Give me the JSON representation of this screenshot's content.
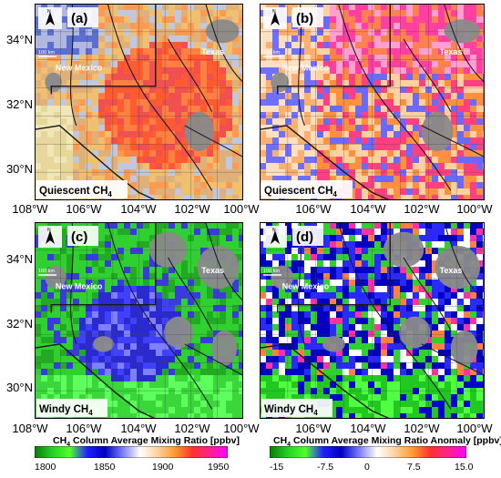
{
  "lat_labels_top": [
    "34°N",
    "32°N",
    "30°N"
  ],
  "lat_labels_bottom": [
    "34°N",
    "32°N",
    "30°N"
  ],
  "lon_labels_mid": [
    "108°W",
    "106°W",
    "104°W",
    "102°W",
    "100°W",
    "106°W",
    "104°W",
    "102°W",
    "100°W"
  ],
  "lon_labels_bottom": [
    "108°W",
    "106°W",
    "104°W",
    "102°W",
    "100°W",
    "106°W",
    "104°W",
    "102°W",
    "100°W"
  ],
  "panels": [
    {
      "letter": "(a)",
      "caption": "Quiescent CH",
      "sub": "4",
      "state_nm": "New Mexico",
      "state_tx": "Texas",
      "scale": "100 km",
      "north": "N",
      "palette": "mixing",
      "profile": "quiescent"
    },
    {
      "letter": "(b)",
      "caption": "Quiescent CH",
      "sub": "4",
      "state_nm": "New Mexico",
      "state_tx": "Texas",
      "scale": "100 km",
      "north": "N",
      "palette": "anomaly",
      "profile": "quiescent"
    },
    {
      "letter": "(c)",
      "caption": "Windy CH",
      "sub": "4",
      "state_nm": "New Mexico",
      "state_tx": "Texas",
      "scale": "100 km",
      "north": "N",
      "palette": "mixing",
      "profile": "windy"
    },
    {
      "letter": "(d)",
      "caption": "Windy CH",
      "sub": "4",
      "state_nm": "New Mexico",
      "state_tx": "Texas",
      "scale": "100 km",
      "north": "N",
      "palette": "anomaly",
      "profile": "windy"
    }
  ],
  "colorbar_left": {
    "title_pre": "CH",
    "title_sub": "4",
    "title_post": " Column Average Mixing Ratio [ppbv]",
    "ticks": [
      "1800",
      "1850",
      "1900",
      "1950"
    ],
    "colors": [
      "#0c7a0c",
      "#23d223",
      "#52ff2a",
      "#2020ff",
      "#0000c0",
      "#7a7aff",
      "#ffffff",
      "#ffd2a0",
      "#ff9a30",
      "#ff3030",
      "#ff2090",
      "#ff00ff"
    ]
  },
  "colorbar_right": {
    "title_pre": "CH",
    "title_sub": "4",
    "title_post": " Column Average Mixing Ratio Anomaly [ppbv]",
    "ticks": [
      "-15",
      "-7.5",
      "0",
      "7.5",
      "15.0"
    ],
    "colors": [
      "#0c7a0c",
      "#23d223",
      "#52ff2a",
      "#2020ff",
      "#0000c0",
      "#7a7aff",
      "#ffffff",
      "#ffd2a0",
      "#ff9a30",
      "#ff3030",
      "#ff2090",
      "#ff00ff"
    ]
  },
  "colors": {
    "ground_gray": "#8a8a8a",
    "river": "#1a1a2a",
    "border": "#1a1a1a",
    "grid": "#444444"
  }
}
